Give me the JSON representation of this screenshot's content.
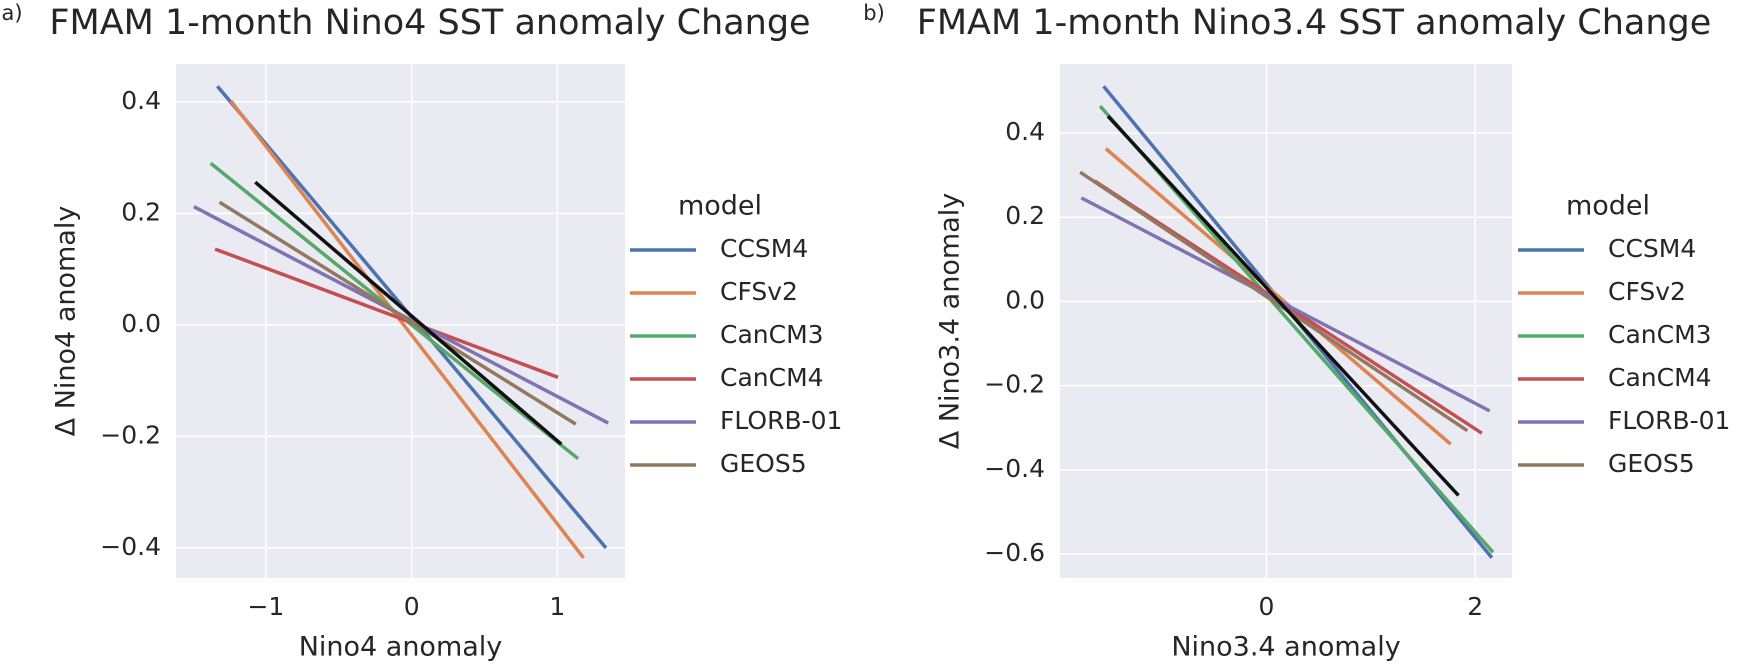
{
  "chart_data": [
    {
      "type": "line",
      "panel_label": "a)",
      "title": "FMAM 1-month Nino4 SST anomaly Change",
      "x_label": "Nino4 anomaly",
      "y_label": "Δ Nino4 anomaly",
      "legend_title": "model",
      "xlim": [
        -1.617,
        1.464
      ],
      "ylim": [
        -0.454,
        0.468
      ],
      "xticks": [
        {
          "value": -1,
          "label": "−1"
        },
        0,
        1
      ],
      "yticks": [
        {
          "value": -0.4,
          "label": "−0.4"
        },
        {
          "value": -0.2,
          "label": "−0.2"
        },
        {
          "value": 0,
          "label": "0.0"
        },
        0.2,
        0.4
      ],
      "grid": true,
      "series": [
        {
          "name": "CCSM4",
          "color": "#4c72b0",
          "x": [
            -1.333,
            1.333
          ],
          "values": [
            0.428,
            -0.4
          ]
        },
        {
          "name": "CFSv2",
          "color": "#dd8452",
          "x": [
            -1.241,
            1.18
          ],
          "values": [
            0.402,
            -0.418
          ]
        },
        {
          "name": "CanCM3",
          "color": "#55a868",
          "x": [
            -1.379,
            1.142
          ],
          "values": [
            0.29,
            -0.24
          ]
        },
        {
          "name": "CanCM4",
          "color": "#c44e52",
          "x": [
            -1.349,
            1.004
          ],
          "values": [
            0.136,
            -0.094
          ]
        },
        {
          "name": "FLORB-01",
          "color": "#8172b3",
          "x": [
            -1.494,
            1.349
          ],
          "values": [
            0.212,
            -0.176
          ]
        },
        {
          "name": "GEOS5",
          "color": "#937860",
          "x": [
            -1.318,
            1.126
          ],
          "values": [
            0.22,
            -0.178
          ]
        },
        {
          "color": "#111111",
          "x": [
            -1.073,
            1.027
          ],
          "values": [
            0.256,
            -0.214
          ]
        }
      ]
    },
    {
      "type": "line",
      "panel_label": "b)",
      "title": "FMAM 1-month Nino3.4 SST anomaly Change",
      "x_label": "Nino3.4 anomaly",
      "y_label": "Δ Nino3.4 anomaly",
      "legend_title": "model",
      "xlim": [
        -1.979,
        2.353
      ],
      "ylim": [
        -0.657,
        0.564
      ],
      "xticks": [
        0,
        2
      ],
      "yticks": [
        {
          "value": -0.6,
          "label": "−0.6"
        },
        {
          "value": -0.4,
          "label": "−0.4"
        },
        {
          "value": -0.2,
          "label": "−0.2"
        },
        {
          "value": 0,
          "label": "0.0"
        },
        0.2,
        0.4
      ],
      "grid": true,
      "series": [
        {
          "name": "CCSM4",
          "color": "#4c72b0",
          "x": [
            -1.561,
            2.16
          ],
          "values": [
            0.511,
            -0.609
          ]
        },
        {
          "name": "CFSv2",
          "color": "#dd8452",
          "x": [
            -1.54,
            1.765
          ],
          "values": [
            0.363,
            -0.339
          ]
        },
        {
          "name": "CanCM3",
          "color": "#55a868",
          "x": [
            -1.594,
            2.171
          ],
          "values": [
            0.464,
            -0.596
          ]
        },
        {
          "name": "CanCM4",
          "color": "#c44e52",
          "x": [
            -1.647,
            2.064
          ],
          "values": [
            0.286,
            -0.313
          ]
        },
        {
          "name": "FLORB-01",
          "color": "#8172b3",
          "x": [
            -1.775,
            2.139
          ],
          "values": [
            0.246,
            -0.26
          ]
        },
        {
          "name": "GEOS5",
          "color": "#937860",
          "x": [
            -1.786,
            1.925
          ],
          "values": [
            0.307,
            -0.307
          ]
        },
        {
          "color": "#111111",
          "x": [
            -1.519,
            1.84
          ],
          "values": [
            0.44,
            -0.461
          ]
        }
      ]
    }
  ]
}
